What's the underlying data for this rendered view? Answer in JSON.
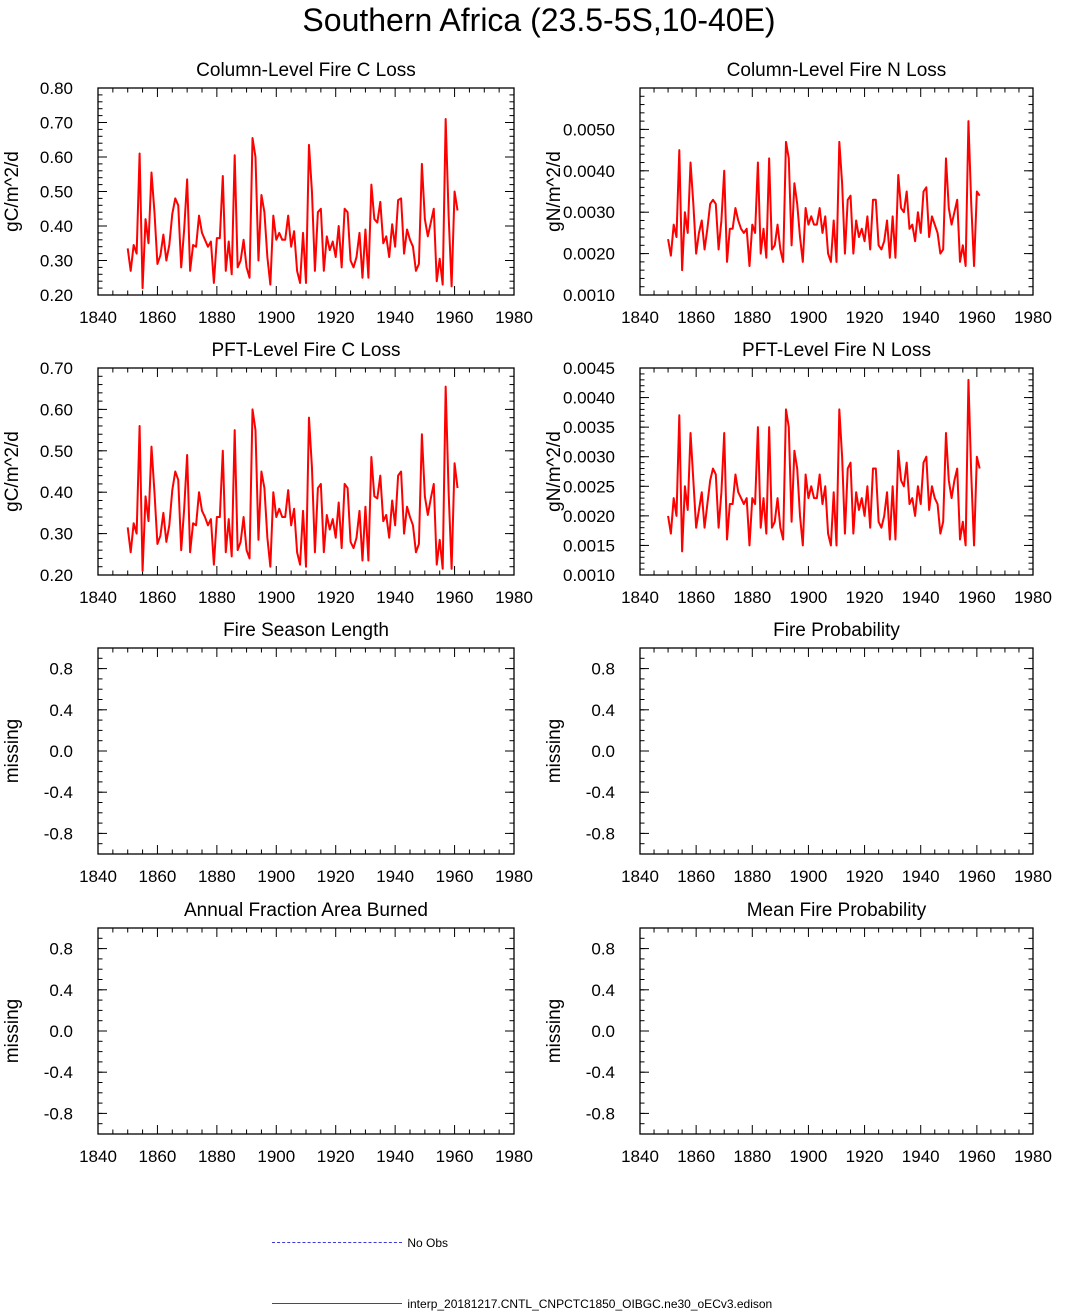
{
  "title": "Southern Africa (23.5-5S,10-40E)",
  "legend": {
    "obs_label": "No Obs",
    "model_label": "interp_20181217.CNTL_CNPCTC1850_OIBGC.ne30_oECv3.edison",
    "obs_color": "#3b3bdc",
    "model_color": "#ff0000"
  },
  "chart_data": [
    {
      "type": "line",
      "title": "Column-Level Fire C Loss",
      "ylabel": "gC/m^2/d",
      "xlim": [
        1840,
        1980
      ],
      "ylim": [
        0.2,
        0.8
      ],
      "xticks": [
        "1840",
        "1860",
        "1880",
        "1900",
        "1920",
        "1940",
        "1960",
        "1980"
      ],
      "yticks": [
        "0.20",
        "0.30",
        "0.40",
        "0.50",
        "0.60",
        "0.70",
        "0.80"
      ],
      "ytick_values": [
        0.2,
        0.3,
        0.4,
        0.5,
        0.6,
        0.7,
        0.8
      ],
      "yminor": 0.02,
      "x_start": 1850,
      "series": [
        {
          "name": "interp_20181217.CNTL_CNPCTC1850_OIBGC.ne30_oECv3.edison",
          "color": "#ff0000",
          "values": [
            0.335,
            0.27,
            0.345,
            0.32,
            0.61,
            0.22,
            0.42,
            0.35,
            0.555,
            0.44,
            0.29,
            0.315,
            0.375,
            0.3,
            0.345,
            0.435,
            0.48,
            0.46,
            0.28,
            0.39,
            0.535,
            0.27,
            0.345,
            0.34,
            0.43,
            0.38,
            0.36,
            0.34,
            0.355,
            0.235,
            0.365,
            0.365,
            0.545,
            0.27,
            0.355,
            0.26,
            0.605,
            0.28,
            0.3,
            0.36,
            0.28,
            0.25,
            0.655,
            0.6,
            0.3,
            0.49,
            0.44,
            0.31,
            0.23,
            0.43,
            0.36,
            0.38,
            0.36,
            0.36,
            0.43,
            0.34,
            0.385,
            0.27,
            0.235,
            0.38,
            0.235,
            0.635,
            0.5,
            0.27,
            0.44,
            0.45,
            0.27,
            0.37,
            0.33,
            0.355,
            0.31,
            0.4,
            0.28,
            0.45,
            0.44,
            0.3,
            0.28,
            0.31,
            0.38,
            0.25,
            0.39,
            0.25,
            0.52,
            0.42,
            0.41,
            0.47,
            0.35,
            0.37,
            0.31,
            0.405,
            0.34,
            0.475,
            0.48,
            0.32,
            0.39,
            0.36,
            0.34,
            0.27,
            0.29,
            0.58,
            0.42,
            0.37,
            0.41,
            0.45,
            0.24,
            0.305,
            0.23,
            0.71,
            0.43,
            0.225,
            0.5,
            0.445
          ]
        }
      ]
    },
    {
      "type": "line",
      "title": "Column-Level Fire N Loss",
      "ylabel": "gN/m^2/d",
      "xlim": [
        1840,
        1980
      ],
      "ylim": [
        0.001,
        0.006
      ],
      "xticks": [
        "1840",
        "1860",
        "1880",
        "1900",
        "1920",
        "1940",
        "1960",
        "1980"
      ],
      "yticks": [
        "0.0010",
        "0.0020",
        "0.0030",
        "0.0040",
        "0.0050"
      ],
      "ytick_values": [
        0.001,
        0.002,
        0.003,
        0.004,
        0.005
      ],
      "yminor": 0.0002,
      "x_start": 1850,
      "series": [
        {
          "name": "interp_20181217.CNTL_CNPCTC1850_OIBGC.ne30_oECv3.edison",
          "color": "#ff0000",
          "values": [
            0.00235,
            0.00195,
            0.0027,
            0.0024,
            0.0045,
            0.0016,
            0.003,
            0.0025,
            0.0042,
            0.0032,
            0.002,
            0.0025,
            0.0028,
            0.0021,
            0.0026,
            0.0032,
            0.0033,
            0.0032,
            0.0021,
            0.0028,
            0.004,
            0.0018,
            0.0026,
            0.0026,
            0.0031,
            0.0028,
            0.0026,
            0.0025,
            0.0026,
            0.0017,
            0.0027,
            0.0025,
            0.0042,
            0.002,
            0.0026,
            0.0019,
            0.0043,
            0.0021,
            0.0022,
            0.0027,
            0.0021,
            0.0018,
            0.0047,
            0.0043,
            0.0022,
            0.0037,
            0.0032,
            0.0024,
            0.0018,
            0.0031,
            0.0027,
            0.0029,
            0.0027,
            0.0027,
            0.0031,
            0.0025,
            0.0029,
            0.002,
            0.0018,
            0.0028,
            0.0018,
            0.0047,
            0.0037,
            0.002,
            0.0033,
            0.0034,
            0.002,
            0.0028,
            0.0024,
            0.0026,
            0.0023,
            0.0029,
            0.0021,
            0.0033,
            0.0033,
            0.0022,
            0.0021,
            0.0023,
            0.0028,
            0.0019,
            0.0029,
            0.0019,
            0.0039,
            0.0031,
            0.003,
            0.0035,
            0.0026,
            0.0027,
            0.0023,
            0.003,
            0.0025,
            0.0035,
            0.0036,
            0.0024,
            0.0029,
            0.0027,
            0.0025,
            0.002,
            0.0021,
            0.0043,
            0.0031,
            0.0027,
            0.003,
            0.0033,
            0.0018,
            0.0022,
            0.0017,
            0.0052,
            0.0032,
            0.0017,
            0.0035,
            0.0034
          ]
        }
      ]
    },
    {
      "type": "line",
      "title": "PFT-Level Fire C Loss",
      "ylabel": "gC/m^2/d",
      "xlim": [
        1840,
        1980
      ],
      "ylim": [
        0.2,
        0.7
      ],
      "xticks": [
        "1840",
        "1860",
        "1880",
        "1900",
        "1920",
        "1940",
        "1960",
        "1980"
      ],
      "yticks": [
        "0.20",
        "0.30",
        "0.40",
        "0.50",
        "0.60",
        "0.70"
      ],
      "ytick_values": [
        0.2,
        0.3,
        0.4,
        0.5,
        0.6,
        0.7
      ],
      "yminor": 0.02,
      "x_start": 1850,
      "series": [
        {
          "name": "interp_20181217.CNTL_CNPCTC1850_OIBGC.ne30_oECv3.edison",
          "color": "#ff0000",
          "values": [
            0.315,
            0.255,
            0.325,
            0.3,
            0.56,
            0.21,
            0.39,
            0.33,
            0.51,
            0.4,
            0.275,
            0.295,
            0.35,
            0.28,
            0.32,
            0.405,
            0.45,
            0.43,
            0.26,
            0.36,
            0.49,
            0.255,
            0.325,
            0.32,
            0.4,
            0.355,
            0.34,
            0.32,
            0.335,
            0.225,
            0.34,
            0.34,
            0.5,
            0.255,
            0.335,
            0.245,
            0.55,
            0.26,
            0.28,
            0.34,
            0.26,
            0.24,
            0.6,
            0.55,
            0.285,
            0.45,
            0.41,
            0.29,
            0.22,
            0.4,
            0.34,
            0.36,
            0.34,
            0.34,
            0.405,
            0.32,
            0.36,
            0.255,
            0.225,
            0.355,
            0.22,
            0.58,
            0.46,
            0.255,
            0.41,
            0.42,
            0.255,
            0.345,
            0.31,
            0.335,
            0.29,
            0.375,
            0.265,
            0.42,
            0.41,
            0.28,
            0.265,
            0.29,
            0.355,
            0.235,
            0.365,
            0.235,
            0.485,
            0.39,
            0.385,
            0.44,
            0.33,
            0.345,
            0.29,
            0.38,
            0.32,
            0.44,
            0.45,
            0.3,
            0.365,
            0.34,
            0.32,
            0.255,
            0.275,
            0.54,
            0.39,
            0.345,
            0.385,
            0.42,
            0.225,
            0.285,
            0.215,
            0.655,
            0.4,
            0.215,
            0.47,
            0.41
          ]
        }
      ]
    },
    {
      "type": "line",
      "title": "PFT-Level Fire N Loss",
      "ylabel": "gN/m^2/d",
      "xlim": [
        1840,
        1980
      ],
      "ylim": [
        0.001,
        0.0045
      ],
      "xticks": [
        "1840",
        "1860",
        "1880",
        "1900",
        "1920",
        "1940",
        "1960",
        "1980"
      ],
      "yticks": [
        "0.0010",
        "0.0015",
        "0.0020",
        "0.0025",
        "0.0030",
        "0.0035",
        "0.0040",
        "0.0045"
      ],
      "ytick_values": [
        0.001,
        0.0015,
        0.002,
        0.0025,
        0.003,
        0.0035,
        0.004,
        0.0045
      ],
      "yminor": 0.0001,
      "x_start": 1850,
      "series": [
        {
          "name": "interp_20181217.CNTL_CNPCTC1850_OIBGC.ne30_oECv3.edison",
          "color": "#ff0000",
          "values": [
            0.002,
            0.0017,
            0.0023,
            0.002,
            0.0037,
            0.0014,
            0.0025,
            0.0021,
            0.0034,
            0.0026,
            0.0018,
            0.0021,
            0.0024,
            0.0018,
            0.0022,
            0.0026,
            0.0028,
            0.0027,
            0.0018,
            0.0024,
            0.0034,
            0.0016,
            0.0022,
            0.0022,
            0.0027,
            0.0024,
            0.0023,
            0.0022,
            0.0023,
            0.0015,
            0.0023,
            0.0022,
            0.0035,
            0.0018,
            0.0023,
            0.0017,
            0.0035,
            0.0018,
            0.0019,
            0.0023,
            0.0018,
            0.0016,
            0.0038,
            0.0035,
            0.0019,
            0.0031,
            0.0028,
            0.002,
            0.0015,
            0.0027,
            0.0023,
            0.0025,
            0.0023,
            0.0023,
            0.0027,
            0.0022,
            0.0025,
            0.0017,
            0.0015,
            0.0024,
            0.0015,
            0.0038,
            0.003,
            0.0017,
            0.0028,
            0.0029,
            0.0017,
            0.0024,
            0.0021,
            0.0023,
            0.002,
            0.0025,
            0.0018,
            0.0028,
            0.0028,
            0.0019,
            0.0018,
            0.002,
            0.0024,
            0.0016,
            0.0025,
            0.0016,
            0.0031,
            0.0026,
            0.0025,
            0.0029,
            0.0022,
            0.0023,
            0.002,
            0.0025,
            0.0022,
            0.0029,
            0.003,
            0.0021,
            0.0025,
            0.0023,
            0.0022,
            0.0017,
            0.0019,
            0.0034,
            0.0026,
            0.0023,
            0.0026,
            0.0028,
            0.0016,
            0.0019,
            0.0015,
            0.0043,
            0.0027,
            0.0015,
            0.003,
            0.0028
          ]
        }
      ]
    },
    {
      "type": "line",
      "title": "Fire Season Length",
      "ylabel": "missing",
      "xlim": [
        1840,
        1980
      ],
      "ylim": [
        -1,
        1
      ],
      "xticks": [
        "1840",
        "1860",
        "1880",
        "1900",
        "1920",
        "1940",
        "1960",
        "1980"
      ],
      "yticks": [
        "-0.8",
        "-0.4",
        "0.0",
        "0.4",
        "0.8"
      ],
      "ytick_values": [
        -0.8,
        -0.4,
        0.0,
        0.4,
        0.8
      ],
      "yminor": 0.1,
      "series": []
    },
    {
      "type": "line",
      "title": "Fire Probability",
      "ylabel": "missing",
      "xlim": [
        1840,
        1980
      ],
      "ylim": [
        -1,
        1
      ],
      "xticks": [
        "1840",
        "1860",
        "1880",
        "1900",
        "1920",
        "1940",
        "1960",
        "1980"
      ],
      "yticks": [
        "-0.8",
        "-0.4",
        "0.0",
        "0.4",
        "0.8"
      ],
      "ytick_values": [
        -0.8,
        -0.4,
        0.0,
        0.4,
        0.8
      ],
      "yminor": 0.1,
      "series": []
    },
    {
      "type": "line",
      "title": "Annual Fraction Area Burned",
      "ylabel": "missing",
      "xlim": [
        1840,
        1980
      ],
      "ylim": [
        -1,
        1
      ],
      "xticks": [
        "1840",
        "1860",
        "1880",
        "1900",
        "1920",
        "1940",
        "1960",
        "1980"
      ],
      "yticks": [
        "-0.8",
        "-0.4",
        "0.0",
        "0.4",
        "0.8"
      ],
      "ytick_values": [
        -0.8,
        -0.4,
        0.0,
        0.4,
        0.8
      ],
      "yminor": 0.1,
      "series": []
    },
    {
      "type": "line",
      "title": "Mean Fire Probability",
      "ylabel": "missing",
      "xlim": [
        1840,
        1980
      ],
      "ylim": [
        -1,
        1
      ],
      "xticks": [
        "1840",
        "1860",
        "1880",
        "1900",
        "1920",
        "1940",
        "1960",
        "1980"
      ],
      "yticks": [
        "-0.8",
        "-0.4",
        "0.0",
        "0.4",
        "0.8"
      ],
      "ytick_values": [
        -0.8,
        -0.4,
        0.0,
        0.4,
        0.8
      ],
      "yminor": 0.1,
      "series": []
    }
  ]
}
